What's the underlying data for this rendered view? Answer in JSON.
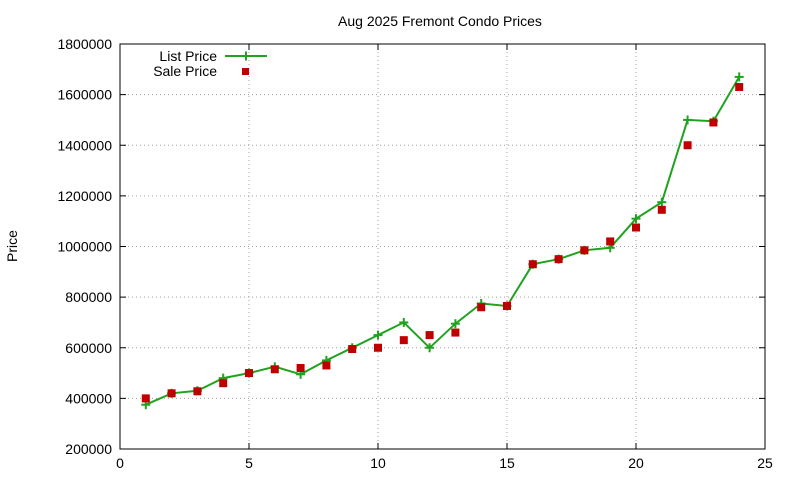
{
  "chart_data": {
    "type": "line",
    "title": "Aug 2025 Fremont Condo Prices",
    "xlabel": "",
    "ylabel": "Price",
    "xlim": [
      0,
      25
    ],
    "ylim": [
      200000,
      1800000
    ],
    "xticks": [
      0,
      5,
      10,
      15,
      20,
      25
    ],
    "yticks": [
      200000,
      400000,
      600000,
      800000,
      1000000,
      1200000,
      1400000,
      1600000,
      1800000
    ],
    "grid": true,
    "legend_position": "top-left",
    "x": [
      1,
      2,
      3,
      4,
      5,
      6,
      7,
      8,
      9,
      10,
      11,
      12,
      13,
      14,
      15,
      16,
      17,
      18,
      19,
      20,
      21,
      22,
      23,
      24
    ],
    "series": [
      {
        "name": "List Price",
        "style": "line-with-plus-markers",
        "color": "#1fa31f",
        "values": [
          375000,
          420000,
          430000,
          480000,
          500000,
          525000,
          495000,
          550000,
          600000,
          650000,
          700000,
          600000,
          695000,
          775000,
          765000,
          930000,
          950000,
          985000,
          995000,
          1110000,
          1175000,
          1500000,
          1495000,
          1670000
        ]
      },
      {
        "name": "Sale Price",
        "style": "square-markers",
        "color": "#c00000",
        "values": [
          400000,
          420000,
          428000,
          460000,
          500000,
          515000,
          520000,
          530000,
          595000,
          600000,
          630000,
          650000,
          660000,
          760000,
          765000,
          930000,
          950000,
          985000,
          1020000,
          1075000,
          1145000,
          1400000,
          1490000,
          1630000
        ]
      }
    ]
  }
}
